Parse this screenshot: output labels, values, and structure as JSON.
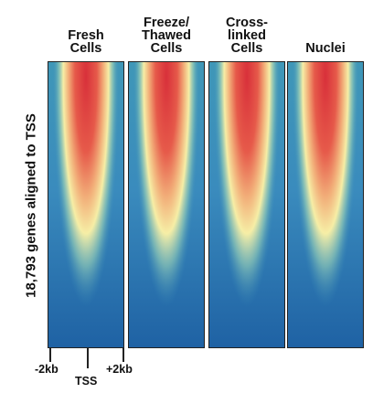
{
  "chart_data": {
    "type": "heatmap",
    "panels": [
      {
        "title_lines": [
          "Fresh",
          "Cells"
        ]
      },
      {
        "title_lines": [
          "Freeze/",
          "Thawed",
          "Cells"
        ]
      },
      {
        "title_lines": [
          "Cross-",
          "linked",
          "Cells"
        ]
      },
      {
        "title_lines": [
          "Nuclei"
        ]
      }
    ],
    "ylabel": "18,793 genes aligned to TSS",
    "x_ticks": [
      "-2kb",
      "TSS",
      "+2kb"
    ],
    "colormap": [
      "#1f5fa0",
      "#3d8fb8",
      "#8fc9b6",
      "#f6eea6",
      "#f0a070",
      "#d8303a"
    ]
  }
}
